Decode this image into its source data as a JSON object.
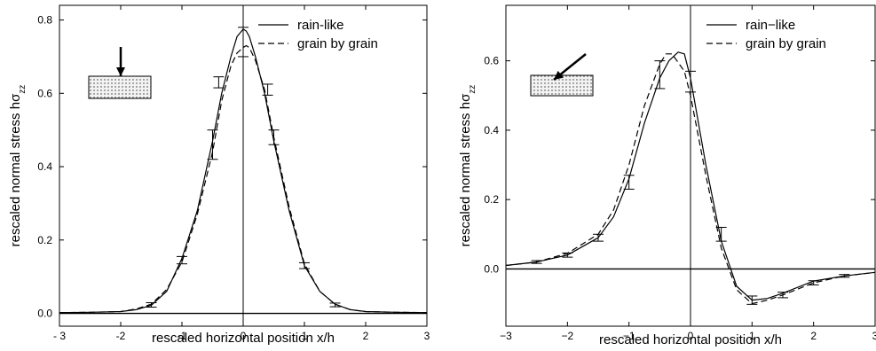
{
  "chart_data": [
    {
      "type": "line",
      "title": "",
      "xlabel": "rescaled horizontal position x/h",
      "ylabel": "rescaled normal stress hσzz",
      "ylabel_main": "rescaled normal stress hσ",
      "ylabel_sub": "zz",
      "xlim": [
        -3,
        3
      ],
      "ylim": [
        -0.035,
        0.84
      ],
      "xticks": [
        -3,
        -2,
        -1,
        0,
        1,
        2,
        3
      ],
      "xtick_labels": [
        "- 3",
        "-2",
        "-1",
        "0",
        "1",
        "2",
        "3"
      ],
      "yticks": [
        0.0,
        0.2,
        0.4,
        0.6,
        0.8
      ],
      "ytick_labels": [
        "0.0",
        "0.2",
        "0.4",
        "0.6",
        "0.8"
      ],
      "grid": false,
      "legend_position": "top-right",
      "inset_arrow": "vertical",
      "series": [
        {
          "name": "rain-like",
          "style": "solid",
          "x": [
            -3,
            -2.5,
            -2,
            -1.75,
            -1.5,
            -1.25,
            -1,
            -0.75,
            -0.5,
            -0.35,
            -0.2,
            -0.1,
            0,
            0.05,
            0.1,
            0.2,
            0.35,
            0.5,
            0.75,
            1,
            1.25,
            1.5,
            1.75,
            2,
            2.5,
            3
          ],
          "y": [
            0.002,
            0.003,
            0.005,
            0.01,
            0.022,
            0.06,
            0.15,
            0.28,
            0.47,
            0.6,
            0.7,
            0.755,
            0.775,
            0.77,
            0.755,
            0.7,
            0.6,
            0.47,
            0.28,
            0.13,
            0.06,
            0.025,
            0.01,
            0.005,
            0.003,
            0.002
          ]
        },
        {
          "name": "grain by grain",
          "style": "dashed",
          "x": [
            -3,
            -2.5,
            -2,
            -1.75,
            -1.5,
            -1.25,
            -1,
            -0.75,
            -0.5,
            -0.35,
            -0.2,
            -0.1,
            0,
            0.05,
            0.1,
            0.2,
            0.35,
            0.5,
            0.75,
            1,
            1.25,
            1.5,
            1.75,
            2,
            2.5,
            3
          ],
          "y": [
            0.002,
            0.003,
            0.005,
            0.012,
            0.025,
            0.065,
            0.14,
            0.27,
            0.44,
            0.58,
            0.675,
            0.71,
            0.725,
            0.73,
            0.725,
            0.69,
            0.61,
            0.48,
            0.29,
            0.135,
            0.06,
            0.025,
            0.01,
            0.005,
            0.003,
            0.002
          ]
        }
      ],
      "error_bars": {
        "x": [
          -1.5,
          -1,
          -0.5,
          -0.4,
          0,
          0.4,
          0.5,
          1,
          1.5
        ],
        "y": [
          0.023,
          0.145,
          0.46,
          0.63,
          0.74,
          0.61,
          0.48,
          0.13,
          0.023
        ],
        "err": [
          0.006,
          0.01,
          0.04,
          0.015,
          0.04,
          0.015,
          0.02,
          0.008,
          0.005
        ]
      }
    },
    {
      "type": "line",
      "title": "",
      "xlabel": "rescaled horizontal position x/h",
      "ylabel": "rescaled normal stress hσzz",
      "ylabel_main": "rescaled normal stress hσ",
      "ylabel_sub": "zz",
      "xlim": [
        -3,
        3
      ],
      "ylim": [
        -0.165,
        0.76
      ],
      "xticks": [
        -3,
        -2,
        -1,
        0,
        1,
        2,
        3
      ],
      "xtick_labels": [
        "−3",
        "−2",
        "−1",
        "0",
        "1",
        "2",
        "3"
      ],
      "yticks": [
        0.0,
        0.2,
        0.4,
        0.6
      ],
      "ytick_labels": [
        "0.0",
        "0.2",
        "0.4",
        "0.6"
      ],
      "grid": false,
      "legend_position": "top-right",
      "inset_arrow": "oblique",
      "series": [
        {
          "name": "rain−like",
          "style": "solid",
          "x": [
            -3,
            -2.5,
            -2,
            -1.5,
            -1.25,
            -1,
            -0.75,
            -0.5,
            -0.35,
            -0.2,
            -0.1,
            0,
            0.25,
            0.5,
            0.75,
            1,
            1.25,
            1.5,
            2,
            2.5,
            3
          ],
          "y": [
            0.01,
            0.02,
            0.04,
            0.09,
            0.15,
            0.26,
            0.42,
            0.55,
            0.6,
            0.625,
            0.62,
            0.55,
            0.3,
            0.08,
            -0.05,
            -0.09,
            -0.085,
            -0.07,
            -0.035,
            -0.02,
            -0.01
          ]
        },
        {
          "name": "grain by grain",
          "style": "dashed",
          "x": [
            -3,
            -2.5,
            -2,
            -1.5,
            -1.25,
            -1,
            -0.75,
            -0.5,
            -0.4,
            -0.3,
            -0.1,
            0,
            0.25,
            0.5,
            0.75,
            1,
            1.25,
            1.5,
            2,
            2.5,
            3
          ],
          "y": [
            0.01,
            0.02,
            0.045,
            0.1,
            0.17,
            0.3,
            0.47,
            0.59,
            0.62,
            0.62,
            0.57,
            0.5,
            0.27,
            0.06,
            -0.06,
            -0.1,
            -0.09,
            -0.075,
            -0.04,
            -0.02,
            -0.01
          ]
        }
      ],
      "error_bars": {
        "x": [
          -2.5,
          -2,
          -1.5,
          -1,
          -0.5,
          0,
          0.5,
          1,
          1.5,
          2,
          2.5
        ],
        "y": [
          0.02,
          0.04,
          0.09,
          0.25,
          0.56,
          0.54,
          0.1,
          -0.09,
          -0.075,
          -0.04,
          -0.02
        ],
        "err": [
          0.004,
          0.006,
          0.01,
          0.02,
          0.04,
          0.03,
          0.02,
          0.012,
          0.008,
          0.006,
          0.004
        ]
      }
    }
  ]
}
